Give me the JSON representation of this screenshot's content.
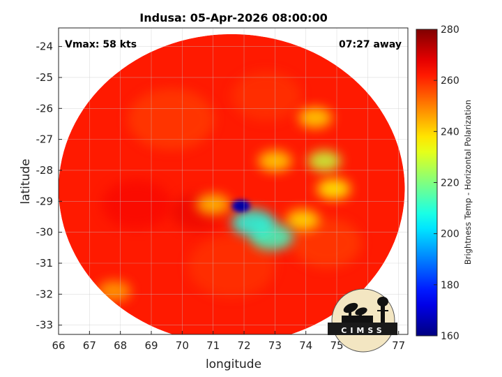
{
  "chart_data": {
    "type": "heatmap",
    "title": "Indusa: 05-Apr-2026 08:00:00",
    "xlabel": "longitude",
    "ylabel": "latitude",
    "xlim": [
      66,
      77.3
    ],
    "ylim": [
      -33.3,
      -23.4
    ],
    "xticks": [
      66,
      67,
      68,
      69,
      70,
      71,
      72,
      73,
      74,
      75,
      76,
      77
    ],
    "yticks": [
      -24,
      -25,
      -26,
      -27,
      -28,
      -29,
      -30,
      -31,
      -32,
      -33
    ],
    "grid": true,
    "annotations": {
      "vmax": "Vmax: 58 kts",
      "time_away": "07:27 away"
    },
    "colorbar": {
      "label": "Brightness Temp - Horizontal Polarization",
      "min": 160,
      "max": 280,
      "ticks": [
        280,
        260,
        240,
        220,
        200,
        180,
        160
      ],
      "colormap": "jet"
    },
    "swath": {
      "center_lon": 71.6,
      "center_lat": -28.6,
      "radius_lon": 5.6,
      "radius_lat": 5.0
    },
    "background_tb": 262,
    "features": [
      {
        "name": "eye-core",
        "lon": 71.9,
        "lat": -29.15,
        "tb": 168
      },
      {
        "name": "inner-rain",
        "lon": 72.3,
        "lat": -29.7,
        "tb": 208
      },
      {
        "name": "south-rain",
        "lon": 72.9,
        "lat": -30.15,
        "tb": 212
      },
      {
        "name": "east-band",
        "lon": 74.6,
        "lat": -27.7,
        "tb": 228
      },
      {
        "name": "east-band-2",
        "lon": 74.9,
        "lat": -28.6,
        "tb": 236
      },
      {
        "name": "north-band",
        "lon": 74.3,
        "lat": -26.3,
        "tb": 240
      },
      {
        "name": "outer-band",
        "lon": 73.9,
        "lat": -29.6,
        "tb": 238
      },
      {
        "name": "west-spot",
        "lon": 71.0,
        "lat": -29.1,
        "tb": 242
      },
      {
        "name": "band-spot",
        "lon": 73.0,
        "lat": -27.7,
        "tb": 240
      },
      {
        "name": "southwest-edge",
        "lon": 67.8,
        "lat": -31.9,
        "tb": 246
      }
    ]
  },
  "logo": {
    "text": "CIMSS"
  }
}
